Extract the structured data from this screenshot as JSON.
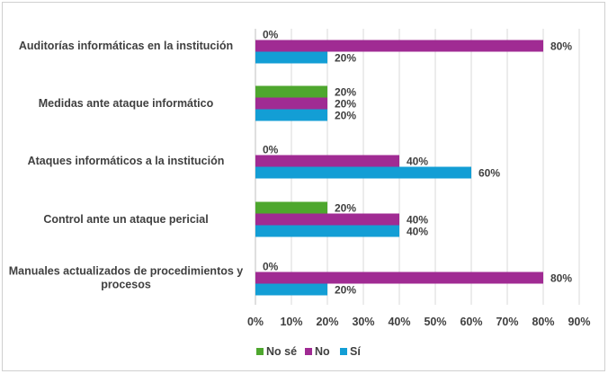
{
  "chart_data": {
    "type": "bar",
    "orientation": "horizontal",
    "title": "",
    "xlabel": "",
    "ylabel": "",
    "xlim": [
      0,
      90
    ],
    "x_ticks": [
      "0%",
      "10%",
      "20%",
      "30%",
      "40%",
      "50%",
      "60%",
      "70%",
      "80%",
      "90%"
    ],
    "grid": true,
    "legend_position": "bottom",
    "categories": [
      "Auditorías informáticas en la institución",
      "Medidas ante ataque informático",
      "Ataques informáticos a la institución",
      "Control ante un ataque pericial",
      "Manuales actualizados de procedimientos y procesos"
    ],
    "category_lines": [
      [
        "Auditorías informáticas en la institución"
      ],
      [
        "Medidas ante ataque informático"
      ],
      [
        "Ataques informáticos a la institución"
      ],
      [
        "Control ante un ataque pericial"
      ],
      [
        "Manuales actualizados de procedimientos y",
        "procesos"
      ]
    ],
    "series": [
      {
        "name": "No sé",
        "color": "#4ea72e",
        "values": [
          0,
          20,
          0,
          20,
          0
        ],
        "labels": [
          "0%",
          "20%",
          "0%",
          "20%",
          "0%"
        ]
      },
      {
        "name": "No",
        "color": "#a02b93",
        "values": [
          80,
          20,
          40,
          40,
          80
        ],
        "labels": [
          "80%",
          "20%",
          "40%",
          "40%",
          "80%"
        ]
      },
      {
        "name": "Sí",
        "color": "#139ed5",
        "values": [
          20,
          20,
          60,
          40,
          20
        ],
        "labels": [
          "20%",
          "20%",
          "60%",
          "40%",
          "20%"
        ]
      }
    ]
  }
}
